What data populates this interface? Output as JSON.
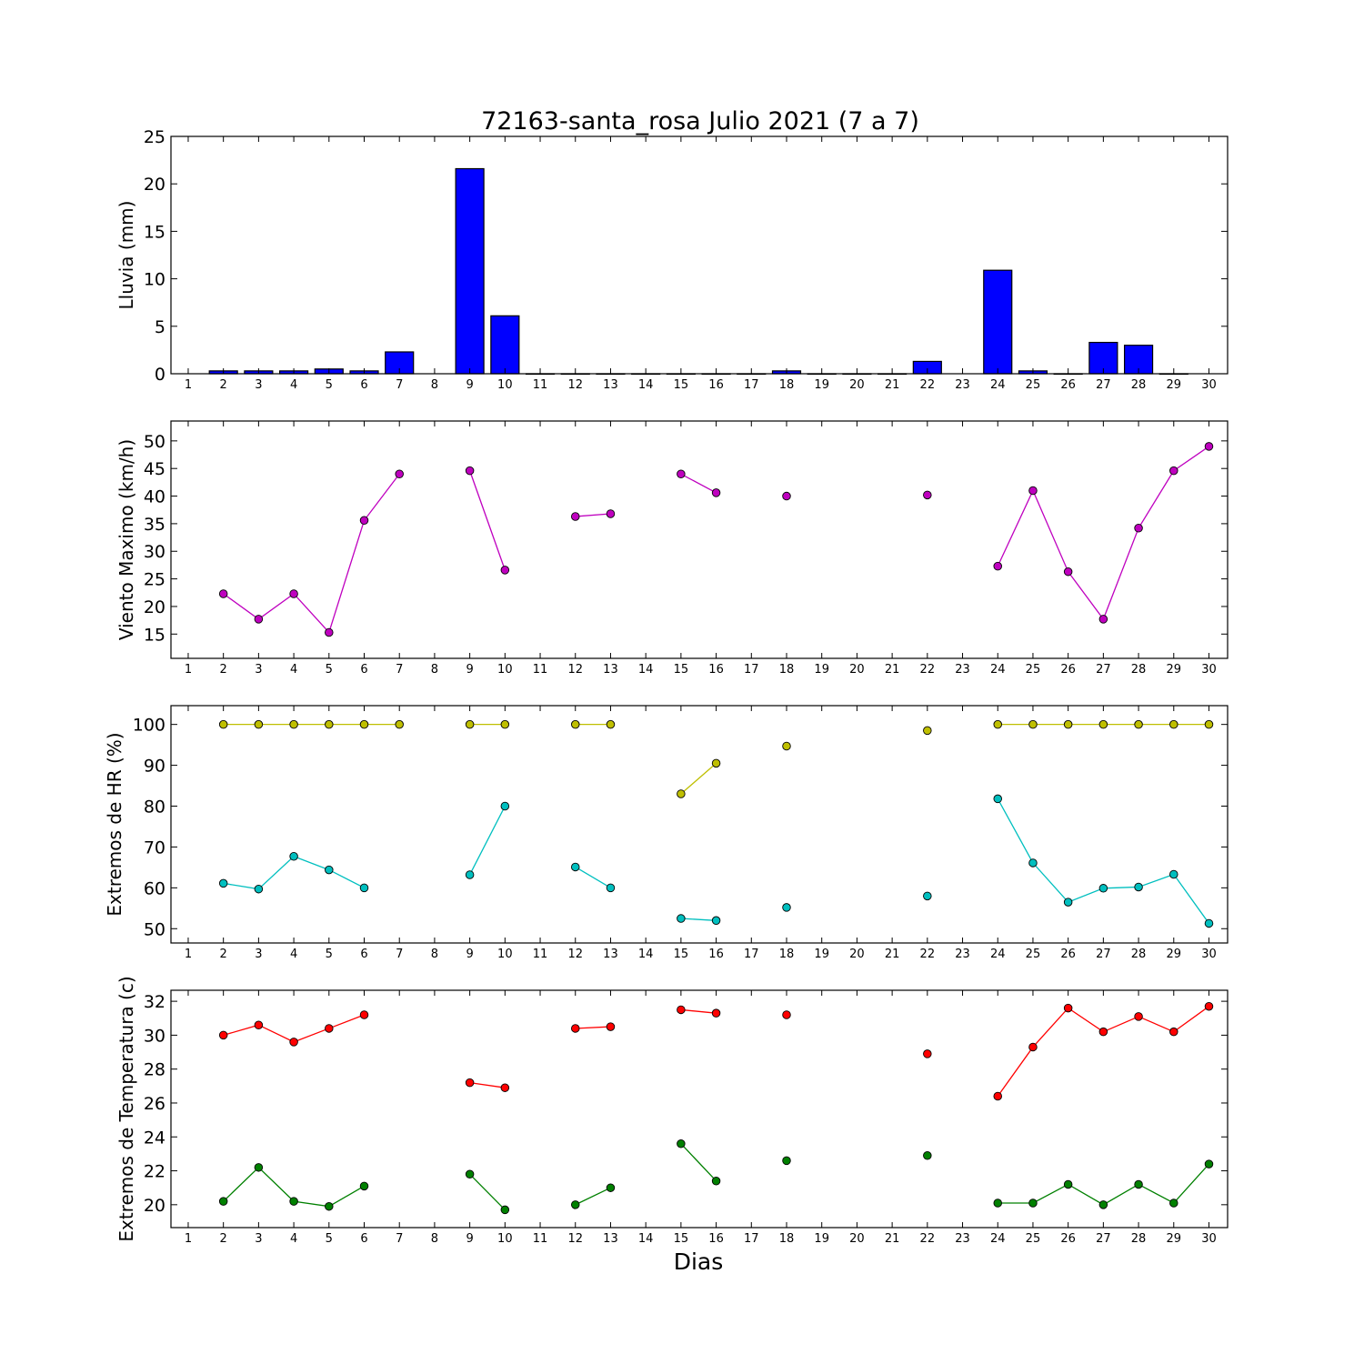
{
  "chart_data": {
    "title": "72163-santa_rosa Julio 2021  (7 a 7)",
    "xlabel": "Dias",
    "x_ticks": [
      "1",
      "2",
      "3",
      "4",
      "5",
      "6",
      "7",
      "8",
      "9",
      "10",
      "11",
      "12",
      "13",
      "14",
      "15",
      "16",
      "17",
      "18",
      "19",
      "20",
      "21",
      "22",
      "23",
      "24",
      "25",
      "26",
      "27",
      "28",
      "29",
      "30"
    ],
    "panels": [
      {
        "id": "lluvia",
        "type": "bar",
        "ylabel": "Lluvia (mm)",
        "ylim": [
          0,
          25
        ],
        "yticks": [
          "0",
          "5",
          "10",
          "15",
          "20",
          "25"
        ],
        "series": [
          {
            "color": "#0000ff",
            "values": [
              null,
              0.3,
              0.3,
              0.3,
              0.5,
              0.3,
              2.3,
              null,
              21.6,
              6.1,
              0,
              0,
              0,
              0,
              0,
              0,
              0,
              0.3,
              0,
              0,
              0,
              1.3,
              null,
              10.9,
              0.3,
              0,
              3.3,
              3.0,
              0,
              null
            ]
          }
        ]
      },
      {
        "id": "viento",
        "type": "line",
        "ylabel": "Viento Maximo (km/h)",
        "ylim": [
          10.6,
          53.6
        ],
        "yticks": [
          "15",
          "20",
          "25",
          "30",
          "35",
          "40",
          "45",
          "50"
        ],
        "series": [
          {
            "color": "#bf00bf",
            "values": [
              null,
              22.3,
              17.7,
              22.3,
              15.3,
              35.6,
              44.0,
              null,
              44.6,
              26.6,
              null,
              36.3,
              36.8,
              null,
              44.0,
              40.6,
              null,
              40.0,
              null,
              null,
              null,
              40.2,
              null,
              27.3,
              41.0,
              26.3,
              17.7,
              34.2,
              44.6,
              49.0
            ]
          }
        ]
      },
      {
        "id": "hr",
        "type": "line",
        "ylabel": "Extremos de HR (%)",
        "ylim": [
          46.5,
          104.6
        ],
        "yticks": [
          "50",
          "60",
          "70",
          "80",
          "90",
          "100"
        ],
        "series": [
          {
            "color": "#bfbf00",
            "values": [
              null,
              100,
              100,
              100,
              100,
              100,
              100,
              null,
              100,
              100,
              null,
              100,
              100,
              null,
              83.0,
              90.5,
              null,
              94.7,
              null,
              null,
              null,
              98.5,
              null,
              100,
              100,
              100,
              100,
              100,
              100,
              100
            ]
          },
          {
            "color": "#00bfbf",
            "values": [
              null,
              61.1,
              59.7,
              67.7,
              64.4,
              60.0,
              null,
              null,
              63.2,
              80.0,
              null,
              65.1,
              60.0,
              null,
              52.5,
              52.0,
              null,
              55.2,
              null,
              null,
              null,
              58.0,
              null,
              81.8,
              66.1,
              56.5,
              59.9,
              60.2,
              63.3,
              51.3
            ]
          }
        ]
      },
      {
        "id": "temperatura",
        "type": "line",
        "ylabel": "Extremos de Temperatura (c)",
        "ylim": [
          18.65,
          32.65
        ],
        "yticks": [
          "20",
          "22",
          "24",
          "26",
          "28",
          "30",
          "32"
        ],
        "series": [
          {
            "color": "#ff0000",
            "values": [
              null,
              30.0,
              30.6,
              29.6,
              30.4,
              31.2,
              null,
              null,
              27.2,
              26.9,
              null,
              30.4,
              30.5,
              null,
              31.5,
              31.3,
              null,
              31.2,
              null,
              null,
              null,
              28.9,
              null,
              26.4,
              29.3,
              31.6,
              30.2,
              31.1,
              30.2,
              31.7
            ]
          },
          {
            "color": "#008000",
            "values": [
              null,
              20.2,
              22.2,
              20.2,
              19.9,
              21.1,
              null,
              null,
              21.8,
              19.7,
              null,
              20.0,
              21.0,
              null,
              23.6,
              21.4,
              null,
              22.6,
              null,
              null,
              null,
              22.9,
              null,
              20.1,
              20.1,
              21.2,
              20.0,
              21.2,
              20.1,
              22.4
            ]
          }
        ]
      }
    ]
  }
}
